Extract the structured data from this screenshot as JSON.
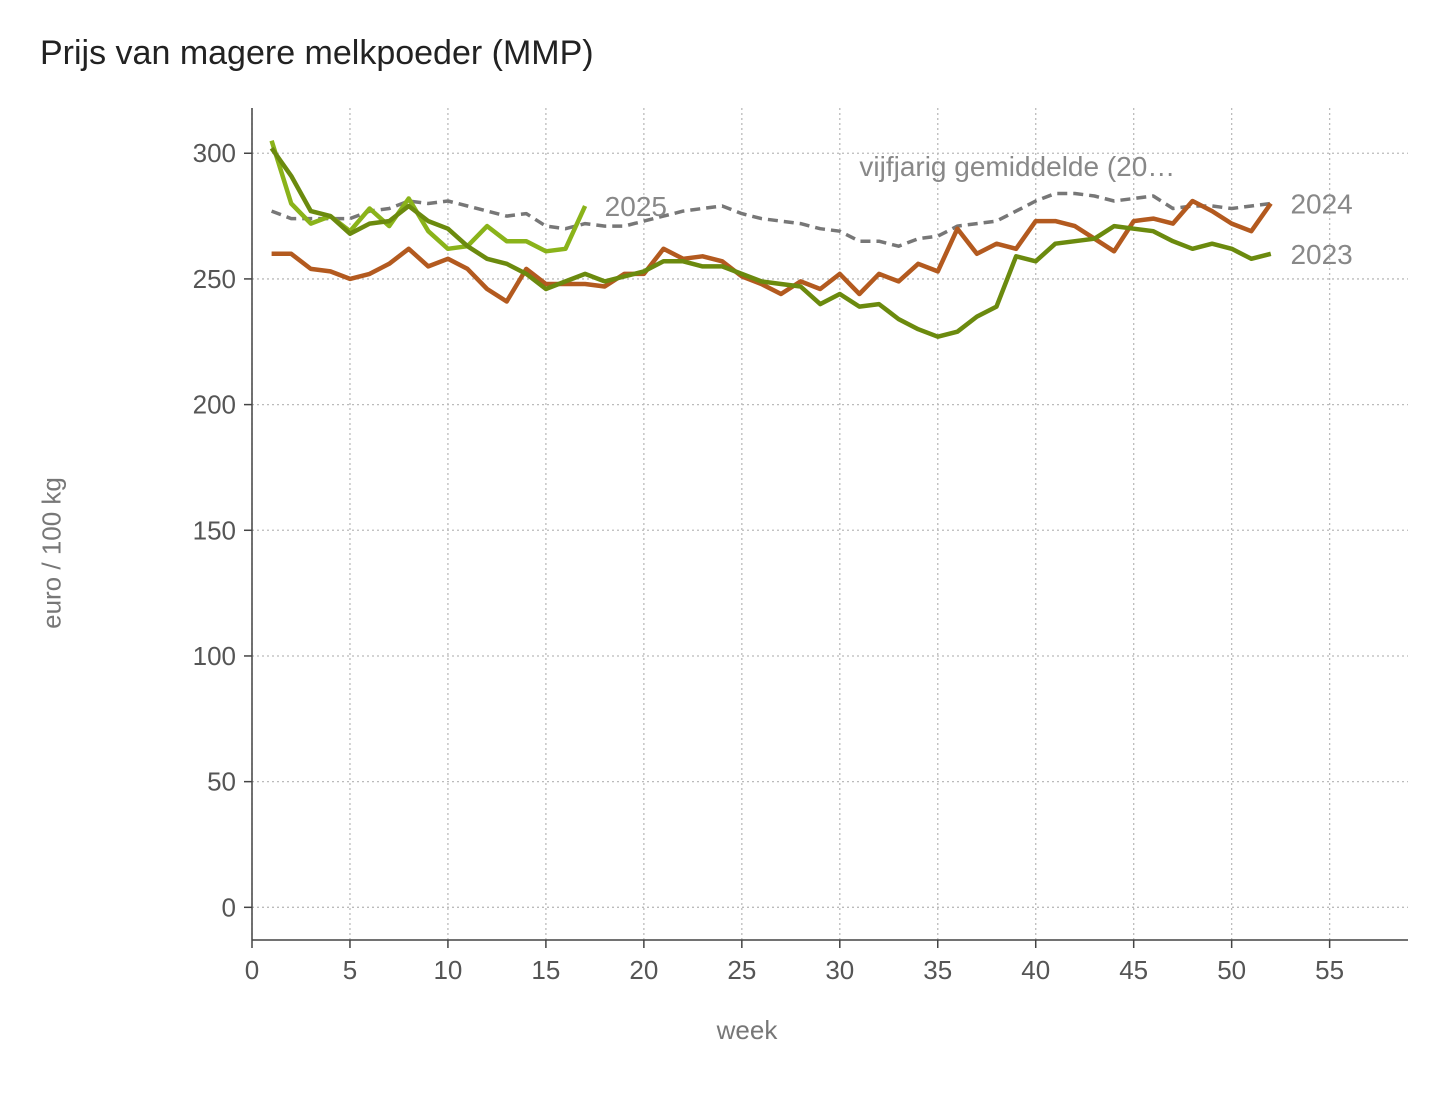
{
  "chart_data": {
    "type": "line",
    "title": "Prijs van magere melkpoeder (MMP)",
    "xlabel": "week",
    "ylabel": "euro / 100 kg",
    "xlim": [
      0,
      59
    ],
    "ylim": [
      -13,
      318
    ],
    "xticks": [
      0,
      5,
      10,
      15,
      20,
      25,
      30,
      35,
      40,
      45,
      50,
      55
    ],
    "yticks": [
      0,
      50,
      100,
      150,
      200,
      250,
      300
    ],
    "grid": true,
    "series": [
      {
        "name": "vijfjarig gemiddelde (20…",
        "color": "#777777",
        "dashed": true,
        "label_at": [
          31,
          295
        ],
        "x": [
          1,
          2,
          3,
          4,
          5,
          6,
          7,
          8,
          9,
          10,
          11,
          12,
          13,
          14,
          15,
          16,
          17,
          18,
          19,
          20,
          21,
          22,
          23,
          24,
          25,
          26,
          27,
          28,
          29,
          30,
          31,
          32,
          33,
          34,
          35,
          36,
          37,
          38,
          39,
          40,
          41,
          42,
          43,
          44,
          45,
          46,
          47,
          48,
          49,
          50,
          51,
          52
        ],
        "y": [
          277,
          274,
          274,
          274,
          274,
          277,
          278,
          281,
          280,
          281,
          279,
          277,
          275,
          276,
          271,
          270,
          272,
          271,
          271,
          273,
          275,
          277,
          278,
          279,
          276,
          274,
          273,
          272,
          270,
          269,
          265,
          265,
          263,
          266,
          267,
          271,
          272,
          273,
          277,
          281,
          284,
          284,
          283,
          281,
          282,
          283,
          278,
          279,
          279,
          278,
          279,
          280
        ]
      },
      {
        "name": "2025",
        "color": "#8ab31a",
        "dashed": false,
        "label_at": [
          18,
          279
        ],
        "x": [
          1,
          2,
          3,
          4,
          5,
          6,
          7,
          8,
          9,
          10,
          11,
          12,
          13,
          14,
          15,
          16,
          17
        ],
        "y": [
          305,
          280,
          272,
          275,
          269,
          278,
          271,
          282,
          269,
          262,
          263,
          271,
          265,
          265,
          261,
          262,
          279
        ]
      },
      {
        "name": "2024",
        "color": "#b35a1f",
        "dashed": false,
        "label_at": [
          53,
          280
        ],
        "x": [
          1,
          2,
          3,
          4,
          5,
          6,
          7,
          8,
          9,
          10,
          11,
          12,
          13,
          14,
          15,
          16,
          17,
          18,
          19,
          20,
          21,
          22,
          23,
          24,
          25,
          26,
          27,
          28,
          29,
          30,
          31,
          32,
          33,
          34,
          35,
          36,
          37,
          38,
          39,
          40,
          41,
          42,
          43,
          44,
          45,
          46,
          47,
          48,
          49,
          50,
          51,
          52
        ],
        "y": [
          260,
          260,
          254,
          253,
          250,
          252,
          256,
          262,
          255,
          258,
          254,
          246,
          241,
          254,
          248,
          248,
          248,
          247,
          252,
          252,
          262,
          258,
          259,
          257,
          251,
          248,
          244,
          249,
          246,
          252,
          244,
          252,
          249,
          256,
          253,
          270,
          260,
          264,
          262,
          273,
          273,
          271,
          266,
          261,
          273,
          274,
          272,
          281,
          277,
          272,
          269,
          280
        ]
      },
      {
        "name": "2023",
        "color": "#6b8a0e",
        "dashed": false,
        "label_at": [
          53,
          260
        ],
        "x": [
          1,
          2,
          3,
          4,
          5,
          6,
          7,
          8,
          9,
          10,
          11,
          12,
          13,
          14,
          15,
          16,
          17,
          18,
          19,
          20,
          21,
          22,
          23,
          24,
          25,
          26,
          27,
          28,
          29,
          30,
          31,
          32,
          33,
          34,
          35,
          36,
          37,
          38,
          39,
          40,
          41,
          42,
          43,
          44,
          45,
          46,
          47,
          48,
          49,
          50,
          51,
          52
        ],
        "y": [
          302,
          291,
          277,
          275,
          268,
          272,
          273,
          279,
          273,
          270,
          263,
          258,
          256,
          252,
          246,
          249,
          252,
          249,
          251,
          253,
          257,
          257,
          255,
          255,
          252,
          249,
          248,
          247,
          240,
          244,
          239,
          240,
          234,
          230,
          227,
          229,
          235,
          239,
          259,
          257,
          264,
          265,
          266,
          271,
          270,
          269,
          265,
          262,
          264,
          262,
          258,
          260
        ]
      }
    ]
  }
}
